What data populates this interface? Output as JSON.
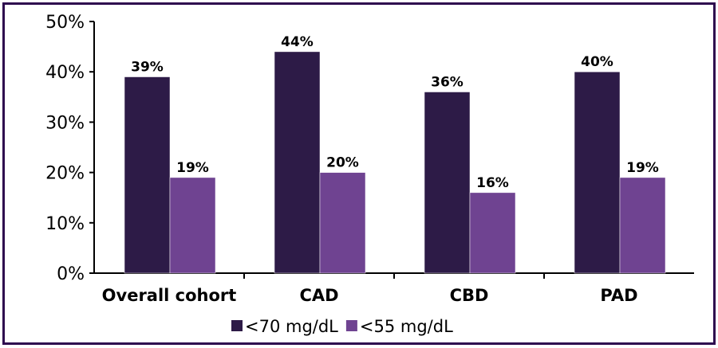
{
  "chart_data": {
    "type": "bar",
    "categories": [
      "Overall cohort",
      "CAD",
      "CBD",
      "PAD"
    ],
    "series": [
      {
        "name": "<70 mg/dL",
        "values": [
          39,
          44,
          36,
          40
        ],
        "labels": [
          "39%",
          "44%",
          "36%",
          "40%"
        ],
        "color": "#2d1b47"
      },
      {
        "name": "<55 mg/dL",
        "values": [
          19,
          20,
          16,
          19
        ],
        "labels": [
          "19%",
          "20%",
          "16%",
          "19%"
        ],
        "color": "#6f4391"
      }
    ],
    "yticks": [
      "0%",
      "10%",
      "20%",
      "30%",
      "40%",
      "50%"
    ],
    "ylim": [
      0,
      50
    ],
    "title": "",
    "xlabel": "",
    "ylabel": "",
    "legend": "bottom",
    "border_color": "#2e0a4f"
  }
}
